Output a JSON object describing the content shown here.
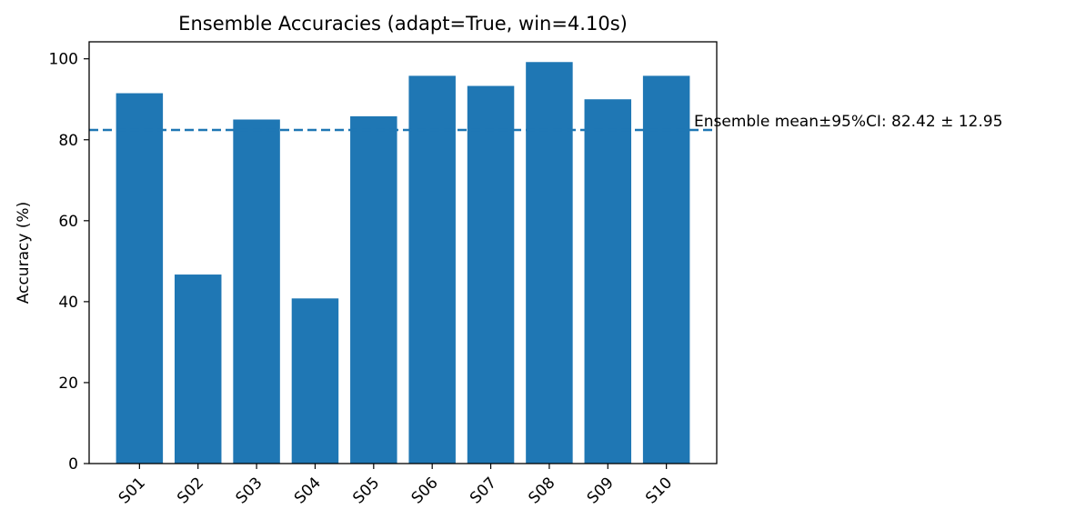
{
  "chart_data": {
    "type": "bar",
    "title": "Ensemble Accuracies (adapt=True, win=4.10s)",
    "xlabel": "",
    "ylabel": "Accuracy (%)",
    "categories": [
      "S01",
      "S02",
      "S03",
      "S04",
      "S05",
      "S06",
      "S07",
      "S08",
      "S09",
      "S10"
    ],
    "values": [
      91.5,
      46.7,
      85.0,
      40.8,
      85.8,
      95.8,
      93.3,
      99.2,
      90.0,
      95.8
    ],
    "ylim": [
      0,
      104.2
    ],
    "yticks": [
      0,
      20,
      40,
      60,
      80,
      100
    ],
    "grid": false,
    "bar_color": "#1f77b4",
    "reference_line": {
      "value": 82.42,
      "style": "dashed",
      "color": "#1f77b4",
      "label": "Ensemble mean±95%CI: 82.42 ± 12.95"
    }
  }
}
